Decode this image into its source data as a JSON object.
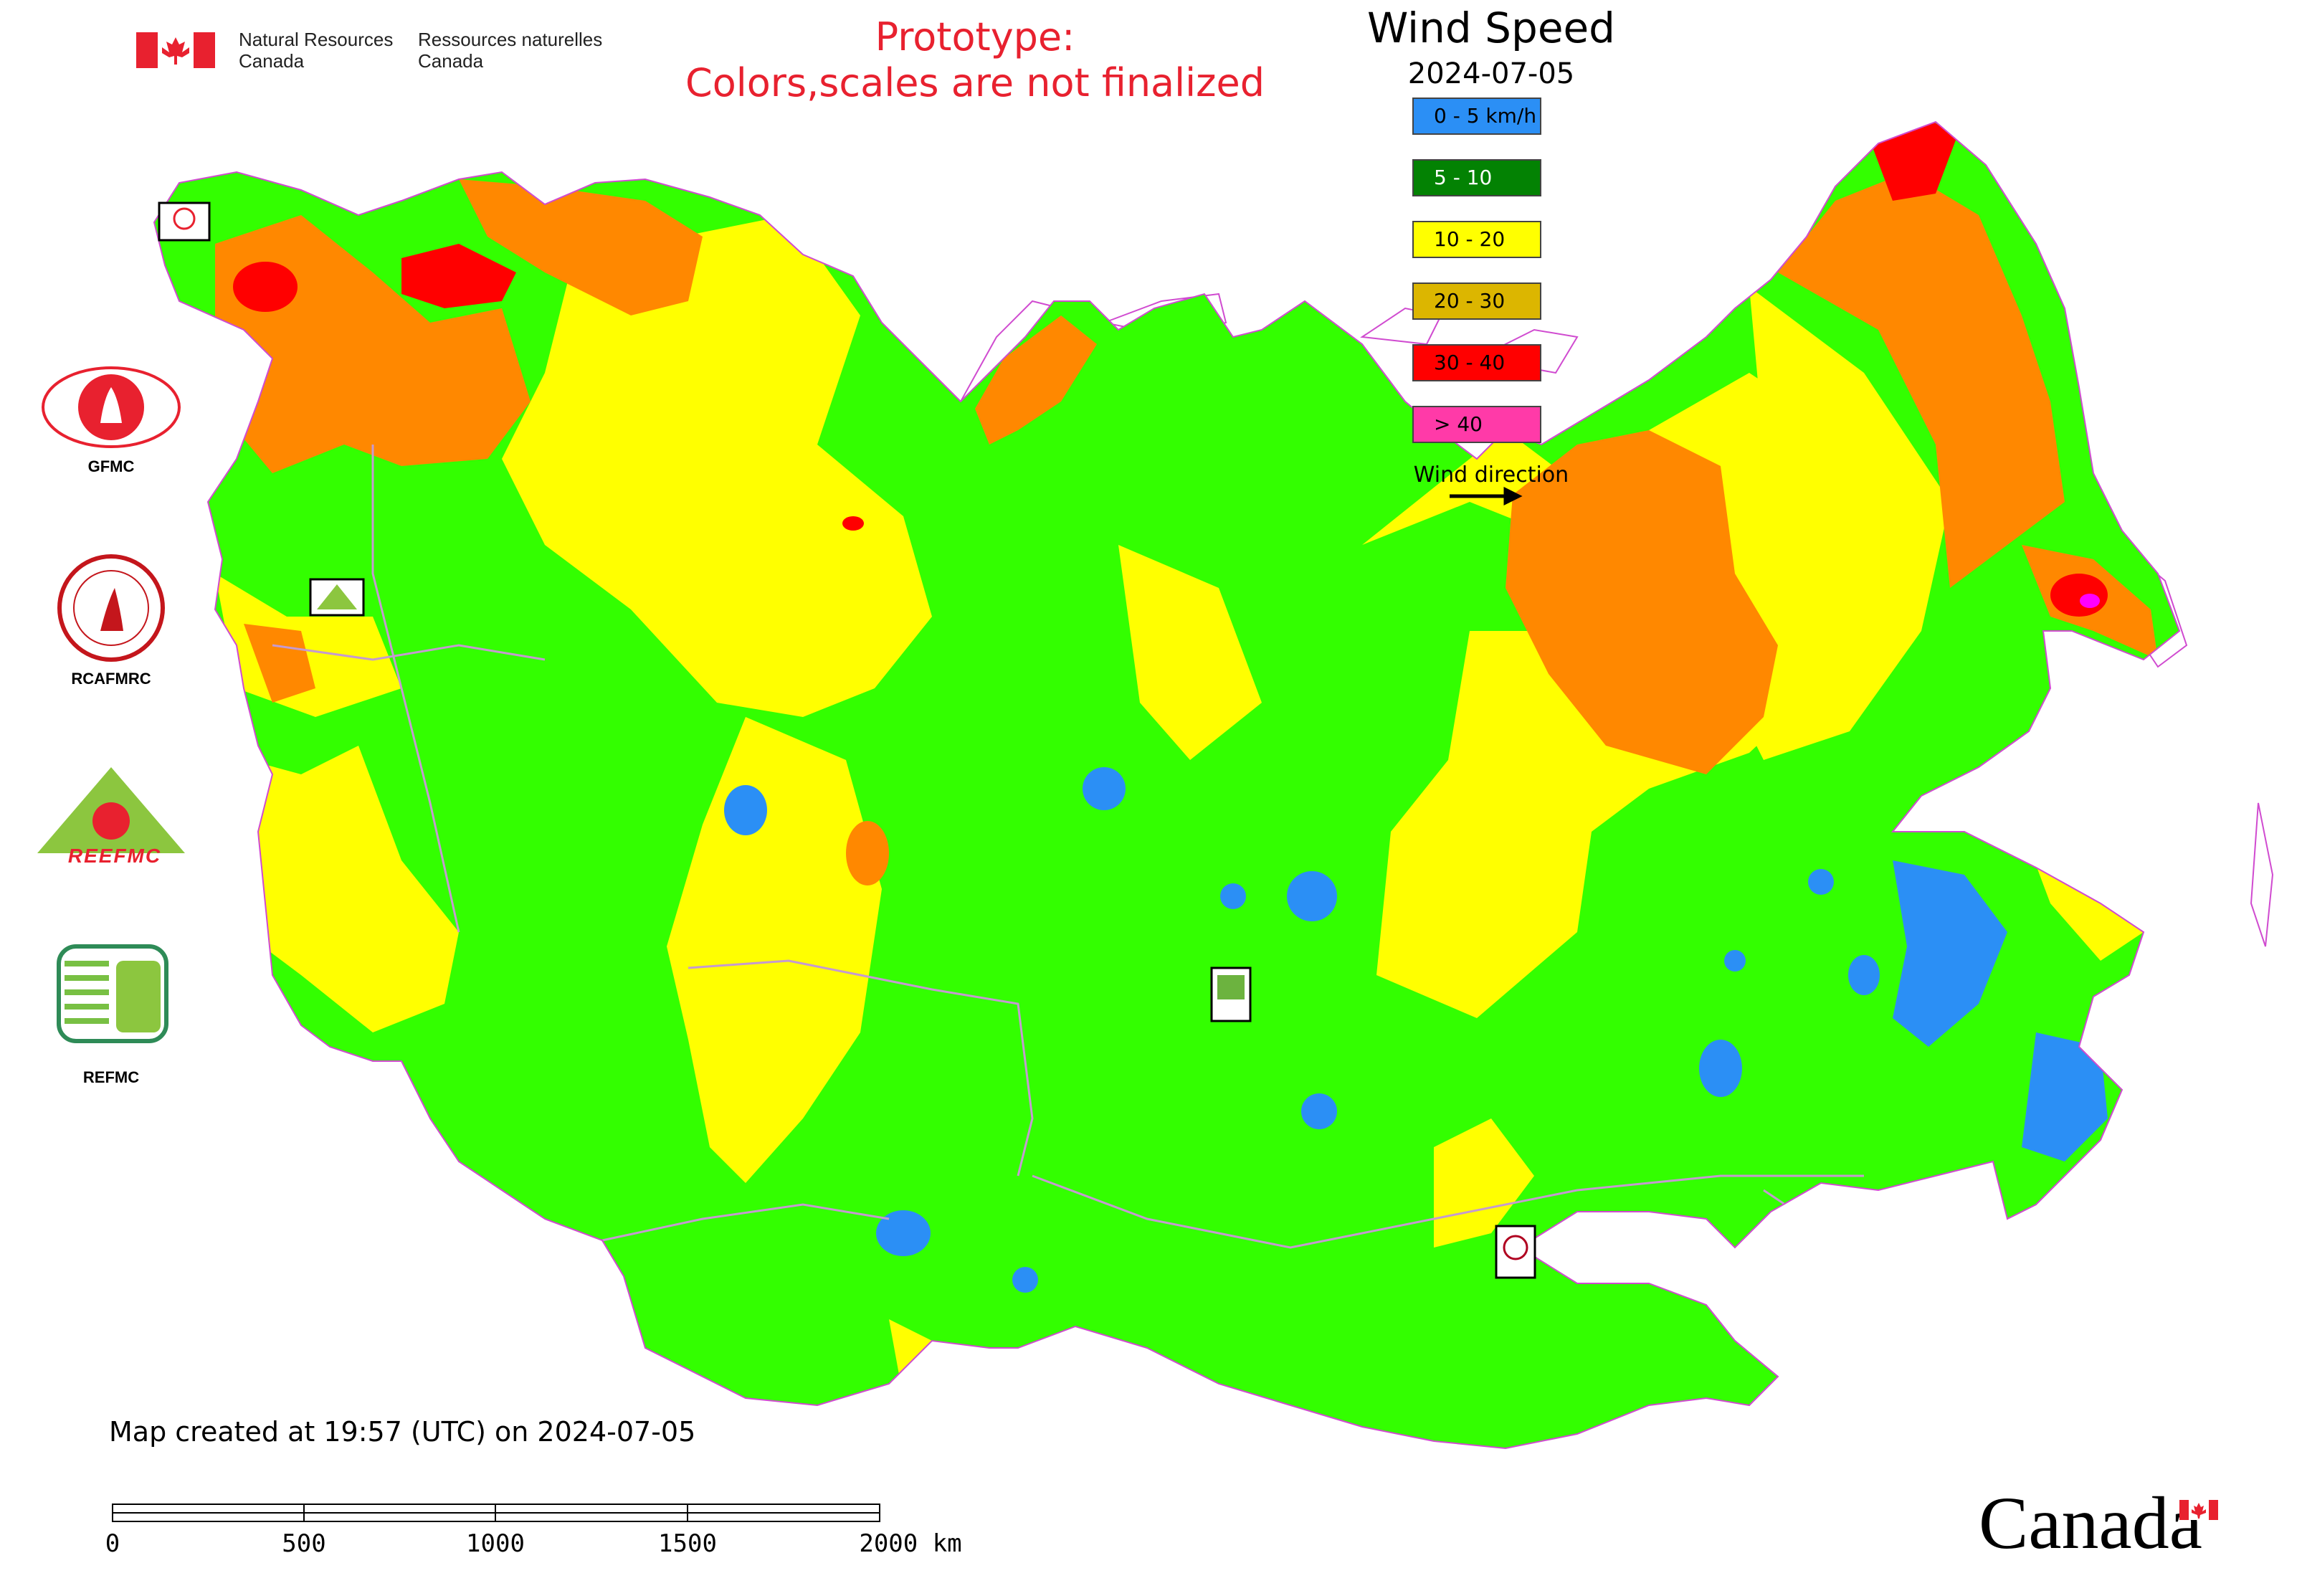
{
  "header": {
    "org_en_line1": "Natural Resources",
    "org_en_line2": "Canada",
    "org_fr_line1": "Ressources naturelles",
    "org_fr_line2": "Canada",
    "prototype_line1": "Prototype:",
    "prototype_line2": "Colors,scales are not finalized"
  },
  "legend": {
    "title": "Wind Speed",
    "date": "2024-07-05",
    "classes": [
      {
        "label": "0 - 5 km/h",
        "color": "#2b8ff5"
      },
      {
        "label": "5 - 10",
        "color": "#038203"
      },
      {
        "label": "10 - 20",
        "color": "#ffff00"
      },
      {
        "label": "20 - 30",
        "color": "#dcb600"
      },
      {
        "label": "30 - 40",
        "color": "#ff0000"
      },
      {
        "label": "> 40",
        "color": "#ff3aa8"
      }
    ],
    "wind_direction_label": "Wind direction"
  },
  "map_palette": {
    "calm": "#2b8ff5",
    "light": "#33ff00",
    "moderate": "#ffff00",
    "fresh": "#ff8800",
    "strong": "#ff0000",
    "gale": "#ff00ff",
    "boundary": "#c59ad0",
    "water": "#ffffff"
  },
  "centers": [
    {
      "label": "GFMC",
      "icon": "gfmc-logo-icon"
    },
    {
      "label": "RCAFMRC",
      "icon": "rcafmrc-logo-icon"
    },
    {
      "label": "REEFMC",
      "icon": "reefmc-logo-icon"
    },
    {
      "label": "REFMC",
      "icon": "refmc-logo-icon"
    }
  ],
  "footer": {
    "created": "Map created at 19:57 (UTC) on 2024-07-05",
    "scale_ticks": [
      "0",
      "500",
      "1000",
      "1500",
      "2000 km"
    ],
    "wordmark": "Canada"
  }
}
